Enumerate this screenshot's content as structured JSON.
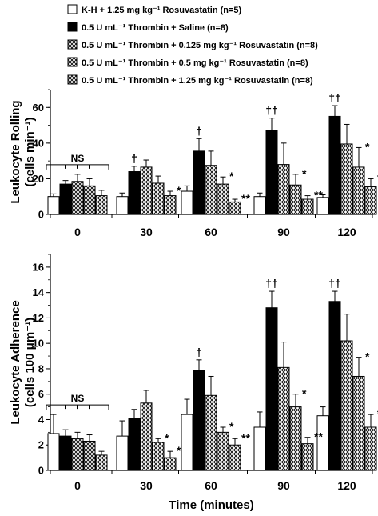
{
  "legend": [
    {
      "text": "K-H + 1.25 mg kg⁻¹ Rosuvastatin (n=5)",
      "pattern": "white"
    },
    {
      "text": "0.5 U mL⁻¹ Thrombin + Saline (n=8)",
      "pattern": "black"
    },
    {
      "text": "0.5 U mL⁻¹ Thrombin + 0.125 mg kg⁻¹ Rosuvastatin (n=8)",
      "pattern": "hatch"
    },
    {
      "text": "0.5 U mL⁻¹ Thrombin + 0.5 mg kg⁻¹ Rosuvastatin (n=8)",
      "pattern": "hatch"
    },
    {
      "text": "0.5 U mL⁻¹ Thrombin + 1.25 mg kg⁻¹ Rosuvastatin (n=8)",
      "pattern": "hatch"
    }
  ],
  "chart_data": [
    {
      "type": "bar",
      "ylabel_line1": "Leukocyte Rolling",
      "ylabel_line2": "(cells min⁻¹)",
      "xlabel": "",
      "ylim": [
        0,
        70
      ],
      "yticks": [
        0,
        20,
        40,
        60
      ],
      "categories": [
        "0",
        "30",
        "60",
        "90",
        "120"
      ],
      "series": [
        {
          "pattern": "white",
          "values": [
            10,
            10,
            13,
            10,
            9.5
          ],
          "errors": [
            1.5,
            2,
            3,
            2,
            1.5
          ]
        },
        {
          "pattern": "black",
          "values": [
            17,
            24,
            35.5,
            47,
            55
          ],
          "errors": [
            2,
            3,
            7,
            7,
            6
          ]
        },
        {
          "pattern": "hatch",
          "values": [
            18.5,
            26.5,
            27.5,
            28,
            39.5
          ],
          "errors": [
            4,
            4,
            8,
            12,
            11
          ]
        },
        {
          "pattern": "hatch",
          "values": [
            16,
            17.5,
            17,
            16.5,
            26.5
          ],
          "errors": [
            4,
            4,
            4,
            6,
            11
          ]
        },
        {
          "pattern": "hatch",
          "values": [
            10.5,
            10.5,
            7,
            8.5,
            15.5
          ],
          "errors": [
            3,
            2.5,
            1.5,
            2,
            4.5
          ]
        }
      ],
      "significance": [
        {
          "category": 0,
          "label": "NS",
          "bracket": true
        },
        {
          "category": 1,
          "series": 1,
          "label": "†"
        },
        {
          "category": 1,
          "series": 4,
          "label": "*"
        },
        {
          "category": 2,
          "series": 1,
          "label": "†"
        },
        {
          "category": 2,
          "series": 3,
          "label": "*"
        },
        {
          "category": 2,
          "series": 4,
          "label": "**"
        },
        {
          "category": 3,
          "series": 1,
          "label": "††"
        },
        {
          "category": 3,
          "series": 3,
          "label": "*"
        },
        {
          "category": 3,
          "series": 4,
          "label": "**"
        },
        {
          "category": 4,
          "series": 1,
          "label": "††"
        },
        {
          "category": 4,
          "series": 3,
          "label": "*"
        },
        {
          "category": 4,
          "series": 4,
          "label": "**"
        }
      ]
    },
    {
      "type": "bar",
      "ylabel_line1": "Leukocyte Adherence",
      "ylabel_line2": "(cells 100 μm⁻¹)",
      "xlabel": "Time (minutes)",
      "ylim": [
        0,
        17
      ],
      "yticks": [
        0,
        2,
        4,
        6,
        8,
        10,
        12,
        14,
        16
      ],
      "categories": [
        "0",
        "30",
        "60",
        "90",
        "120"
      ],
      "series": [
        {
          "pattern": "white",
          "values": [
            2.9,
            2.7,
            4.4,
            3.4,
            4.3
          ],
          "errors": [
            1.5,
            1.2,
            1.2,
            1.2,
            0.7
          ]
        },
        {
          "pattern": "black",
          "values": [
            2.7,
            4.1,
            7.9,
            12.8,
            13.3
          ],
          "errors": [
            0.5,
            0.7,
            0.8,
            1.3,
            0.8
          ]
        },
        {
          "pattern": "hatch",
          "values": [
            2.5,
            5.3,
            5.9,
            8.1,
            10.2
          ],
          "errors": [
            0.5,
            1.0,
            1.5,
            2.0,
            2.1
          ]
        },
        {
          "pattern": "hatch",
          "values": [
            2.3,
            2.2,
            3.0,
            5.0,
            7.4
          ],
          "errors": [
            0.5,
            0.3,
            0.4,
            1.0,
            1.5
          ]
        },
        {
          "pattern": "hatch",
          "values": [
            1.2,
            1.0,
            2.0,
            2.1,
            3.4
          ],
          "errors": [
            0.3,
            0.5,
            0.5,
            0.5,
            1.0
          ]
        }
      ],
      "significance": [
        {
          "category": 0,
          "label": "NS",
          "bracket": true
        },
        {
          "category": 1,
          "series": 3,
          "label": "*"
        },
        {
          "category": 1,
          "series": 4,
          "label": "*"
        },
        {
          "category": 2,
          "series": 1,
          "label": "†"
        },
        {
          "category": 2,
          "series": 3,
          "label": "*"
        },
        {
          "category": 2,
          "series": 4,
          "label": "**"
        },
        {
          "category": 3,
          "series": 1,
          "label": "††"
        },
        {
          "category": 3,
          "series": 3,
          "label": "*"
        },
        {
          "category": 3,
          "series": 4,
          "label": "**"
        },
        {
          "category": 4,
          "series": 1,
          "label": "††"
        },
        {
          "category": 4,
          "series": 3,
          "label": "*"
        },
        {
          "category": 4,
          "series": 4,
          "label": "**"
        }
      ]
    }
  ]
}
